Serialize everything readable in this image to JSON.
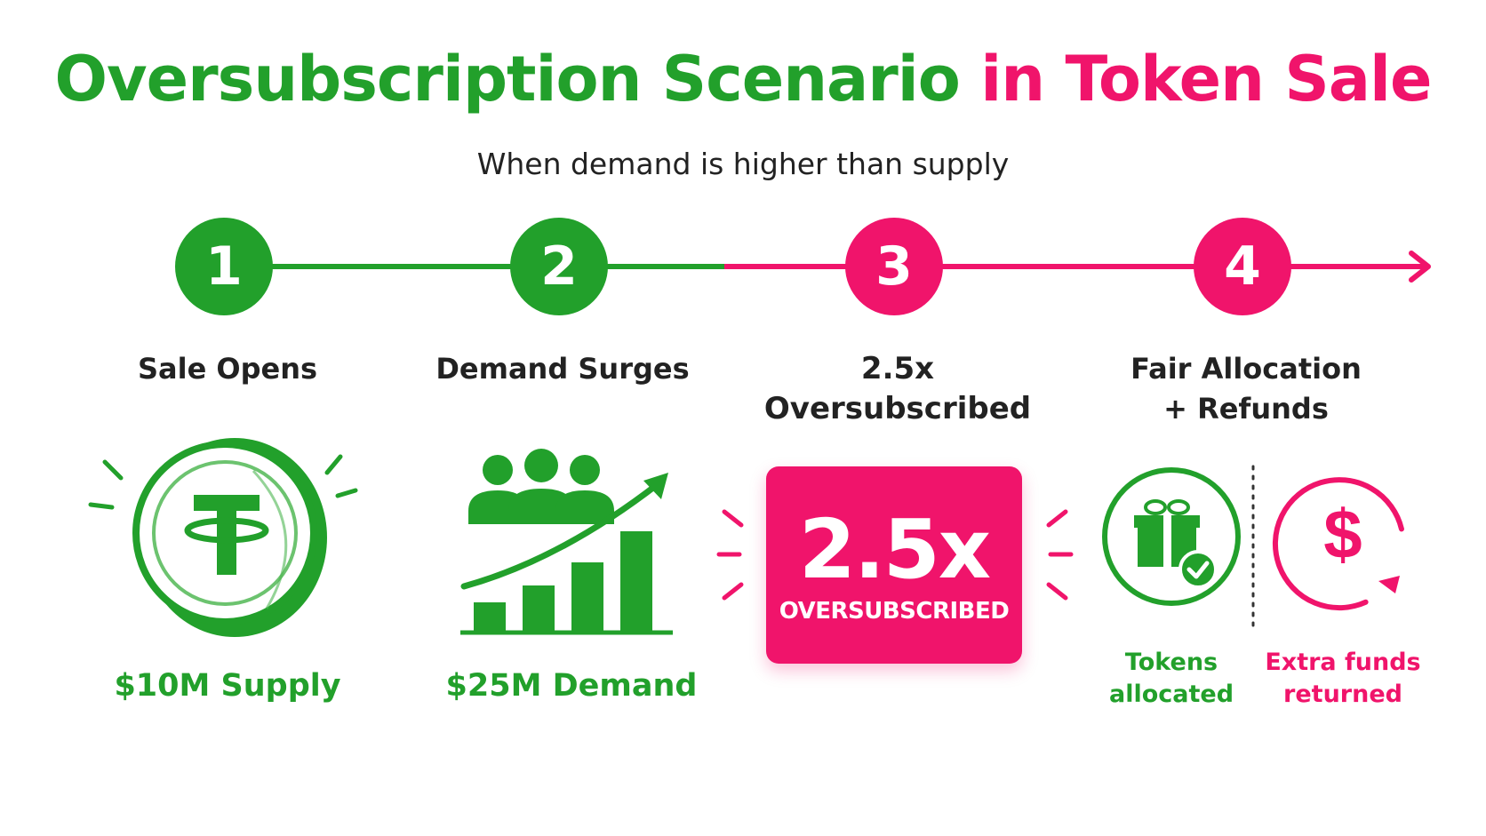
{
  "title": {
    "part_green": "Oversubscription Scenario",
    "part_pink": "in Token Sale"
  },
  "subtitle": "When demand is higher than supply",
  "colors": {
    "green": "#22A02B",
    "pink": "#F0146B",
    "text": "#222222"
  },
  "steps": [
    {
      "number": "1",
      "label": "Sale Opens",
      "caption": "$10M Supply",
      "icon": "tether-coin-icon"
    },
    {
      "number": "2",
      "label": "Demand Surges",
      "caption": "$25M Demand",
      "icon": "crowd-growth-chart-icon"
    },
    {
      "number": "3",
      "label_line1": "2.5x",
      "label_line2": "Oversubscribed",
      "box_big": "2.5x",
      "box_small": "OVERSUBSCRIBED"
    },
    {
      "number": "4",
      "label_line1": "Fair Allocation",
      "label_line2": "+ Refunds",
      "left_caption_line1": "Tokens",
      "left_caption_line2": "allocated",
      "left_icon": "gift-check-icon",
      "right_caption_line1": "Extra funds",
      "right_caption_line2": "returned",
      "right_icon": "dollar-refund-icon"
    }
  ]
}
